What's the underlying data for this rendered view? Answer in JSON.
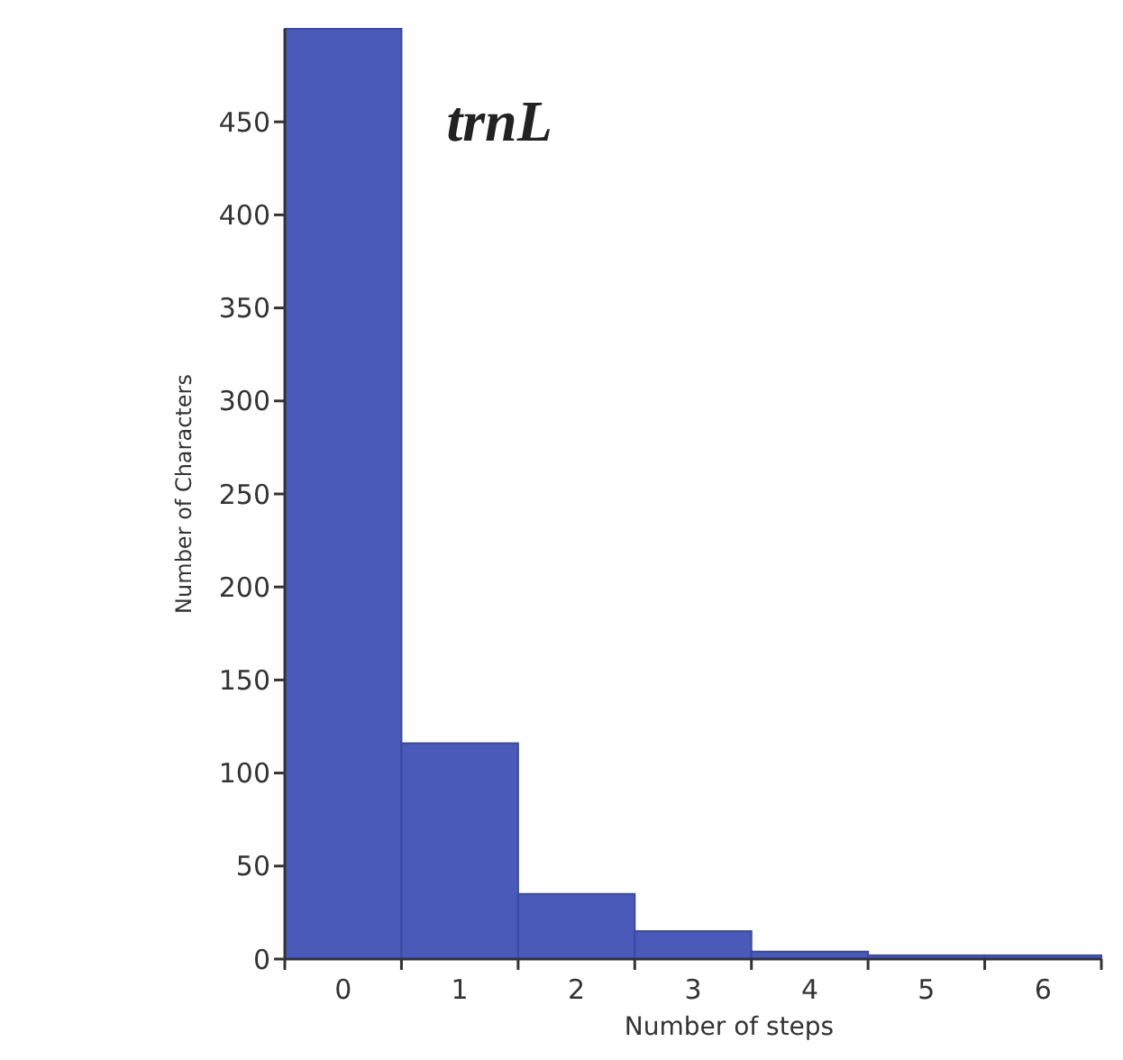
{
  "chart_data": {
    "type": "bar",
    "title": "trnL",
    "xlabel": "Number of steps",
    "ylabel": "Number of Characters",
    "categories": [
      "0",
      "1",
      "2",
      "3",
      "4",
      "5",
      "6"
    ],
    "values": [
      500,
      116,
      35,
      15,
      4,
      2,
      2
    ],
    "color": "#4a5ab8",
    "ylim": [
      0,
      500
    ],
    "yticks": [
      0,
      50,
      100,
      150,
      200,
      250,
      300,
      350,
      400,
      450
    ],
    "grid": false
  }
}
